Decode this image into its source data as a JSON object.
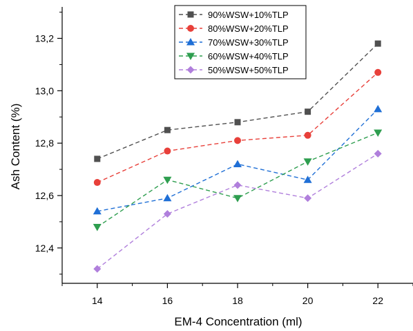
{
  "chart_data": {
    "type": "line",
    "title": "",
    "xlabel": "EM-4 Concentration (ml)",
    "ylabel": "Ash Content (%)",
    "x": [
      14,
      16,
      18,
      20,
      22
    ],
    "xlim": [
      13,
      23
    ],
    "ylim": [
      12.265,
      13.32
    ],
    "xticks": [
      "14",
      "16",
      "18",
      "20",
      "22"
    ],
    "yticks": [
      {
        "value": 12.4,
        "label": "12,4"
      },
      {
        "value": 12.6,
        "label": "12,6"
      },
      {
        "value": 12.8,
        "label": "12,8"
      },
      {
        "value": 13.0,
        "label": "13,0"
      },
      {
        "value": 13.2,
        "label": "13,2"
      }
    ],
    "grid": false,
    "legend_position": "top-center",
    "series": [
      {
        "name": "90%WSW+10%TLP",
        "color": "#505050",
        "marker": "square",
        "values": [
          12.74,
          12.85,
          12.88,
          12.92,
          13.18
        ]
      },
      {
        "name": "80%WSW+20%TLP",
        "color": "#e8403a",
        "marker": "circle",
        "values": [
          12.65,
          12.77,
          12.81,
          12.83,
          13.07
        ]
      },
      {
        "name": "70%WSW+30%TLP",
        "color": "#1f6fd6",
        "marker": "triangle-up",
        "values": [
          12.54,
          12.59,
          12.72,
          12.66,
          12.93
        ]
      },
      {
        "name": "60%WSW+40%TLP",
        "color": "#2e9e4f",
        "marker": "triangle-down",
        "values": [
          12.48,
          12.66,
          12.59,
          12.73,
          12.84
        ]
      },
      {
        "name": "50%WSW+50%TLP",
        "color": "#b07fdc",
        "marker": "diamond",
        "values": [
          12.32,
          12.53,
          12.64,
          12.59,
          12.76
        ]
      }
    ]
  }
}
